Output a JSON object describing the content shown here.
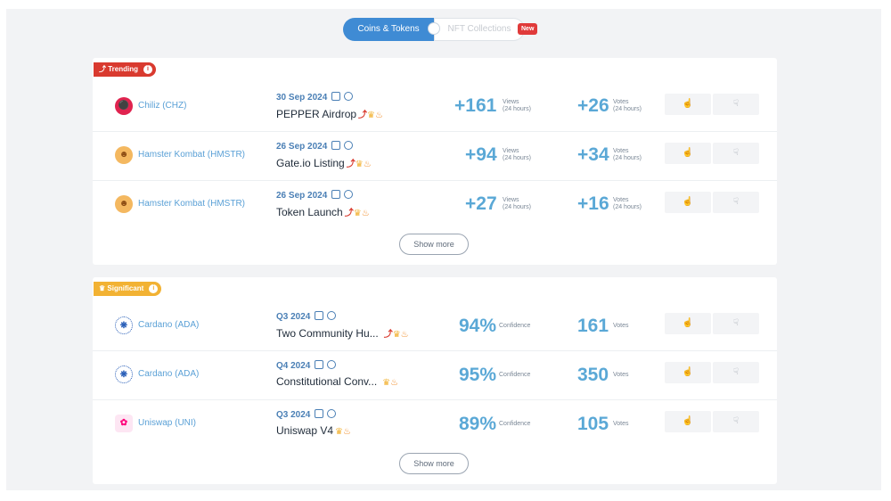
{
  "toggle": {
    "active_label": "Coins & Tokens",
    "inactive_label": "NFT Collections",
    "new_badge": "New"
  },
  "trending": {
    "badge_label": "Trending",
    "rows": [
      {
        "coin": "Chiliz (CHZ)",
        "date": "30 Sep 2024",
        "title": "PEPPER Airdrop",
        "views": "+161",
        "views_label": "Views",
        "views_period": "(24 hours)",
        "votes": "+26",
        "votes_label": "Votes",
        "votes_period": "(24 hours)"
      },
      {
        "coin": "Hamster Kombat (HMSTR)",
        "date": "26 Sep 2024",
        "title": "Gate.io Listing",
        "views": "+94",
        "views_label": "Views",
        "views_period": "(24 hours)",
        "votes": "+34",
        "votes_label": "Votes",
        "votes_period": "(24 hours)"
      },
      {
        "coin": "Hamster Kombat (HMSTR)",
        "date": "26 Sep 2024",
        "title": "Token Launch",
        "views": "+27",
        "views_label": "Views",
        "views_period": "(24 hours)",
        "votes": "+16",
        "votes_label": "Votes",
        "votes_period": "(24 hours)"
      }
    ],
    "show_more": "Show more"
  },
  "significant": {
    "badge_label": "Significant",
    "rows": [
      {
        "coin": "Cardano (ADA)",
        "date": "Q3 2024",
        "title": "Two Community Hu...",
        "confidence": "94%",
        "confidence_label": "Confidence",
        "votes": "161",
        "votes_label": "Votes"
      },
      {
        "coin": "Cardano (ADA)",
        "date": "Q4 2024",
        "title": "Constitutional Conv...",
        "confidence": "95%",
        "confidence_label": "Confidence",
        "votes": "350",
        "votes_label": "Votes"
      },
      {
        "coin": "Uniswap (UNI)",
        "date": "Q3 2024",
        "title": "Uniswap V4",
        "confidence": "89%",
        "confidence_label": "Confidence",
        "votes": "105",
        "votes_label": "Votes"
      }
    ],
    "show_more": "Show more"
  },
  "icons": {
    "thumbs_up": "thumbs-up-icon",
    "thumbs_down": "thumbs-down-icon",
    "calendar": "calendar-icon",
    "clock": "clock-icon",
    "trending_up": "trending-arrow-icon",
    "crown": "crown-icon",
    "fire": "fire-icon",
    "info": "info-icon"
  },
  "colors": {
    "accent": "#3f8bd4",
    "trending": "#d93a2f",
    "significant": "#f2b233",
    "value": "#5aa8d6"
  }
}
